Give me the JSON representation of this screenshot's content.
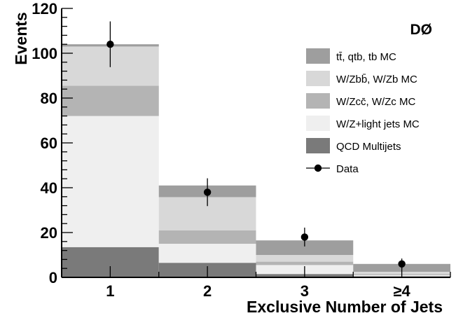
{
  "chart_data": {
    "type": "bar",
    "stacked": true,
    "experiment_label": "DØ",
    "xlabel": "Exclusive Number of Jets",
    "ylabel": "Events",
    "categories": [
      "1",
      "2",
      "3",
      "≥4"
    ],
    "ylim": [
      0,
      120
    ],
    "yticks": [
      0,
      20,
      40,
      60,
      80,
      100,
      120
    ],
    "grid": false,
    "legend_position": "top-right",
    "series": [
      {
        "name": "QCD Multijets",
        "color": "#7a7a7a",
        "values": [
          13.5,
          6.5,
          1.5,
          0.5
        ]
      },
      {
        "name": "W/Z+light jets MC",
        "color": "#efefef",
        "values": [
          58.5,
          8.5,
          4.0,
          0.5
        ]
      },
      {
        "name": "W/Zcc̄, W/Zc MC",
        "color": "#b4b4b4",
        "values": [
          13.5,
          6.0,
          1.5,
          0.5
        ]
      },
      {
        "name": "W/Zbb̄, W/Zb MC",
        "color": "#d8d8d8",
        "values": [
          17.5,
          14.8,
          3.0,
          1.0
        ]
      },
      {
        "name": "tt̄, qtb, tb MC",
        "color": "#9e9e9e",
        "values": [
          1.0,
          5.2,
          6.5,
          3.5
        ]
      }
    ],
    "data": {
      "name": "Data",
      "values": [
        104,
        38,
        18,
        6
      ],
      "errors": [
        10.2,
        6.2,
        4.2,
        2.4
      ]
    },
    "legend_order": [
      {
        "label": "tt̄, qtb, tb MC",
        "marker": "box",
        "color": "#9e9e9e"
      },
      {
        "label": "W/Zbb̄, W/Zb MC",
        "marker": "box",
        "color": "#d8d8d8"
      },
      {
        "label": "W/Zcc̄, W/Zc MC",
        "marker": "box",
        "color": "#b4b4b4"
      },
      {
        "label": "W/Z+light jets MC",
        "marker": "box",
        "color": "#efefef"
      },
      {
        "label": "QCD Multijets",
        "marker": "box",
        "color": "#7a7a7a"
      },
      {
        "label": "Data",
        "marker": "point",
        "color": "#000000"
      }
    ]
  }
}
